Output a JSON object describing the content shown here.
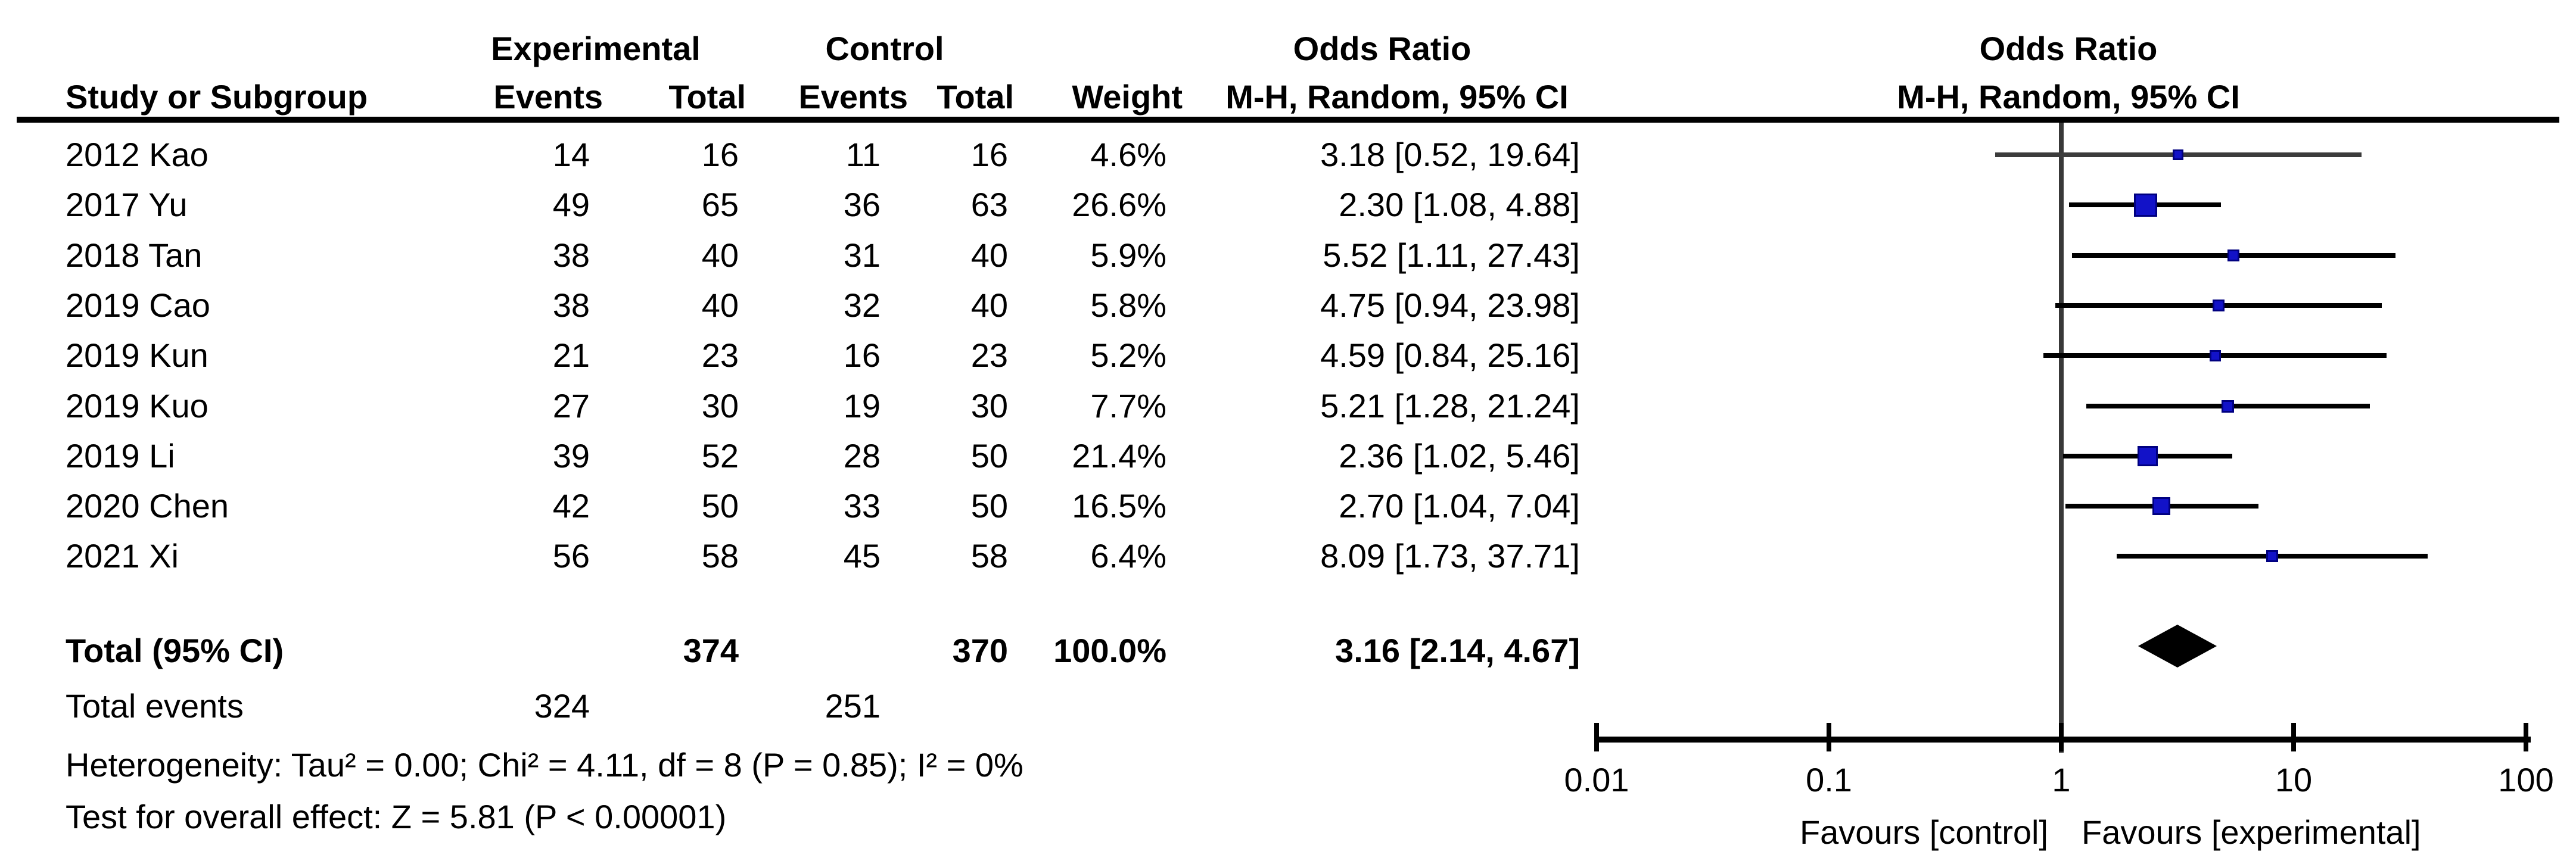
{
  "table": {
    "header": {
      "group_experimental": "Experimental",
      "group_control": "Control",
      "col_study": "Study or Subgroup",
      "col_events": "Events",
      "col_total": "Total",
      "col_weight": "Weight",
      "or_title": "Odds Ratio",
      "or_subtitle": "M-H, Random, 95% CI",
      "plot_title": "Odds Ratio",
      "plot_subtitle": "M-H, Random, 95% CI"
    },
    "rows": [
      {
        "study": "2012 Kao",
        "e_events": "14",
        "e_total": "16",
        "c_events": "11",
        "c_total": "16",
        "weight": "4.6%",
        "or_text": "3.18 [0.52, 19.64]"
      },
      {
        "study": "2017 Yu",
        "e_events": "49",
        "e_total": "65",
        "c_events": "36",
        "c_total": "63",
        "weight": "26.6%",
        "or_text": "2.30 [1.08, 4.88]"
      },
      {
        "study": "2018 Tan",
        "e_events": "38",
        "e_total": "40",
        "c_events": "31",
        "c_total": "40",
        "weight": "5.9%",
        "or_text": "5.52 [1.11, 27.43]"
      },
      {
        "study": "2019 Cao",
        "e_events": "38",
        "e_total": "40",
        "c_events": "32",
        "c_total": "40",
        "weight": "5.8%",
        "or_text": "4.75 [0.94, 23.98]"
      },
      {
        "study": "2019 Kun",
        "e_events": "21",
        "e_total": "23",
        "c_events": "16",
        "c_total": "23",
        "weight": "5.2%",
        "or_text": "4.59 [0.84, 25.16]"
      },
      {
        "study": "2019 Kuo",
        "e_events": "27",
        "e_total": "30",
        "c_events": "19",
        "c_total": "30",
        "weight": "7.7%",
        "or_text": "5.21 [1.28, 21.24]"
      },
      {
        "study": "2019 Li",
        "e_events": "39",
        "e_total": "52",
        "c_events": "28",
        "c_total": "50",
        "weight": "21.4%",
        "or_text": "2.36 [1.02, 5.46]"
      },
      {
        "study": "2020 Chen",
        "e_events": "42",
        "e_total": "50",
        "c_events": "33",
        "c_total": "50",
        "weight": "16.5%",
        "or_text": "2.70 [1.04, 7.04]"
      },
      {
        "study": "2021 Xi",
        "e_events": "56",
        "e_total": "58",
        "c_events": "45",
        "c_total": "58",
        "weight": "6.4%",
        "or_text": "8.09 [1.73, 37.71]"
      }
    ],
    "totals": {
      "label": "Total (95% CI)",
      "e_total": "374",
      "c_total": "370",
      "weight": "100.0%",
      "or_text": "3.16 [2.14, 4.67]"
    },
    "total_events": {
      "label": "Total events",
      "e_events": "324",
      "c_events": "251"
    },
    "footnotes": {
      "heterogeneity": "Heterogeneity: Tau² = 0.00; Chi² = 4.11, df = 8 (P = 0.85); I² = 0%",
      "overall_effect": "Test for overall effect: Z = 5.81 (P < 0.00001)"
    }
  },
  "axis": {
    "tick_labels": [
      "0.01",
      "0.1",
      "1",
      "10",
      "100"
    ],
    "favours_left": "Favours [control]",
    "favours_right": "Favours [experimental]"
  },
  "colors": {
    "square_fill": "#1212C8",
    "square_border": "#000080",
    "ci_line": "#000000",
    "ci_line_first_row": "#3C3C3C",
    "null_line": "#383838",
    "diamond": "#000000",
    "text": "#000000"
  },
  "chart_data": {
    "type": "scatter",
    "subtype": "forest-plot-meta-analysis",
    "title": "Odds Ratio",
    "effect_measure": "M-H, Random, 95% CI",
    "x_scale": "log10",
    "xlim": [
      0.01,
      100
    ],
    "x_ticks": [
      0.01,
      0.1,
      1,
      10,
      100
    ],
    "null_line": 1,
    "studies": [
      {
        "study": "2012 Kao",
        "or": 3.18,
        "ci_low": 0.52,
        "ci_high": 19.64,
        "weight_pct": 4.6
      },
      {
        "study": "2017 Yu",
        "or": 2.3,
        "ci_low": 1.08,
        "ci_high": 4.88,
        "weight_pct": 26.6
      },
      {
        "study": "2018 Tan",
        "or": 5.52,
        "ci_low": 1.11,
        "ci_high": 27.43,
        "weight_pct": 5.9
      },
      {
        "study": "2019 Cao",
        "or": 4.75,
        "ci_low": 0.94,
        "ci_high": 23.98,
        "weight_pct": 5.8
      },
      {
        "study": "2019 Kun",
        "or": 4.59,
        "ci_low": 0.84,
        "ci_high": 25.16,
        "weight_pct": 5.2
      },
      {
        "study": "2019 Kuo",
        "or": 5.21,
        "ci_low": 1.28,
        "ci_high": 21.24,
        "weight_pct": 7.7
      },
      {
        "study": "2019 Li",
        "or": 2.36,
        "ci_low": 1.02,
        "ci_high": 5.46,
        "weight_pct": 21.4
      },
      {
        "study": "2020 Chen",
        "or": 2.7,
        "ci_low": 1.04,
        "ci_high": 7.04,
        "weight_pct": 16.5
      },
      {
        "study": "2021 Xi",
        "or": 8.09,
        "ci_low": 1.73,
        "ci_high": 37.71,
        "weight_pct": 6.4
      }
    ],
    "pooled": {
      "label": "Total (95% CI)",
      "or": 3.16,
      "ci_low": 2.14,
      "ci_high": 4.67,
      "weight_pct": 100.0
    },
    "heterogeneity": {
      "tau2": 0.0,
      "chi2": 4.11,
      "df": 8,
      "p": 0.85,
      "i2_pct": 0
    },
    "overall_effect": {
      "z": 5.81,
      "p": "< 0.00001"
    },
    "favours_left": "Favours [control]",
    "favours_right": "Favours [experimental]",
    "legend_position": "none",
    "grid": false
  }
}
